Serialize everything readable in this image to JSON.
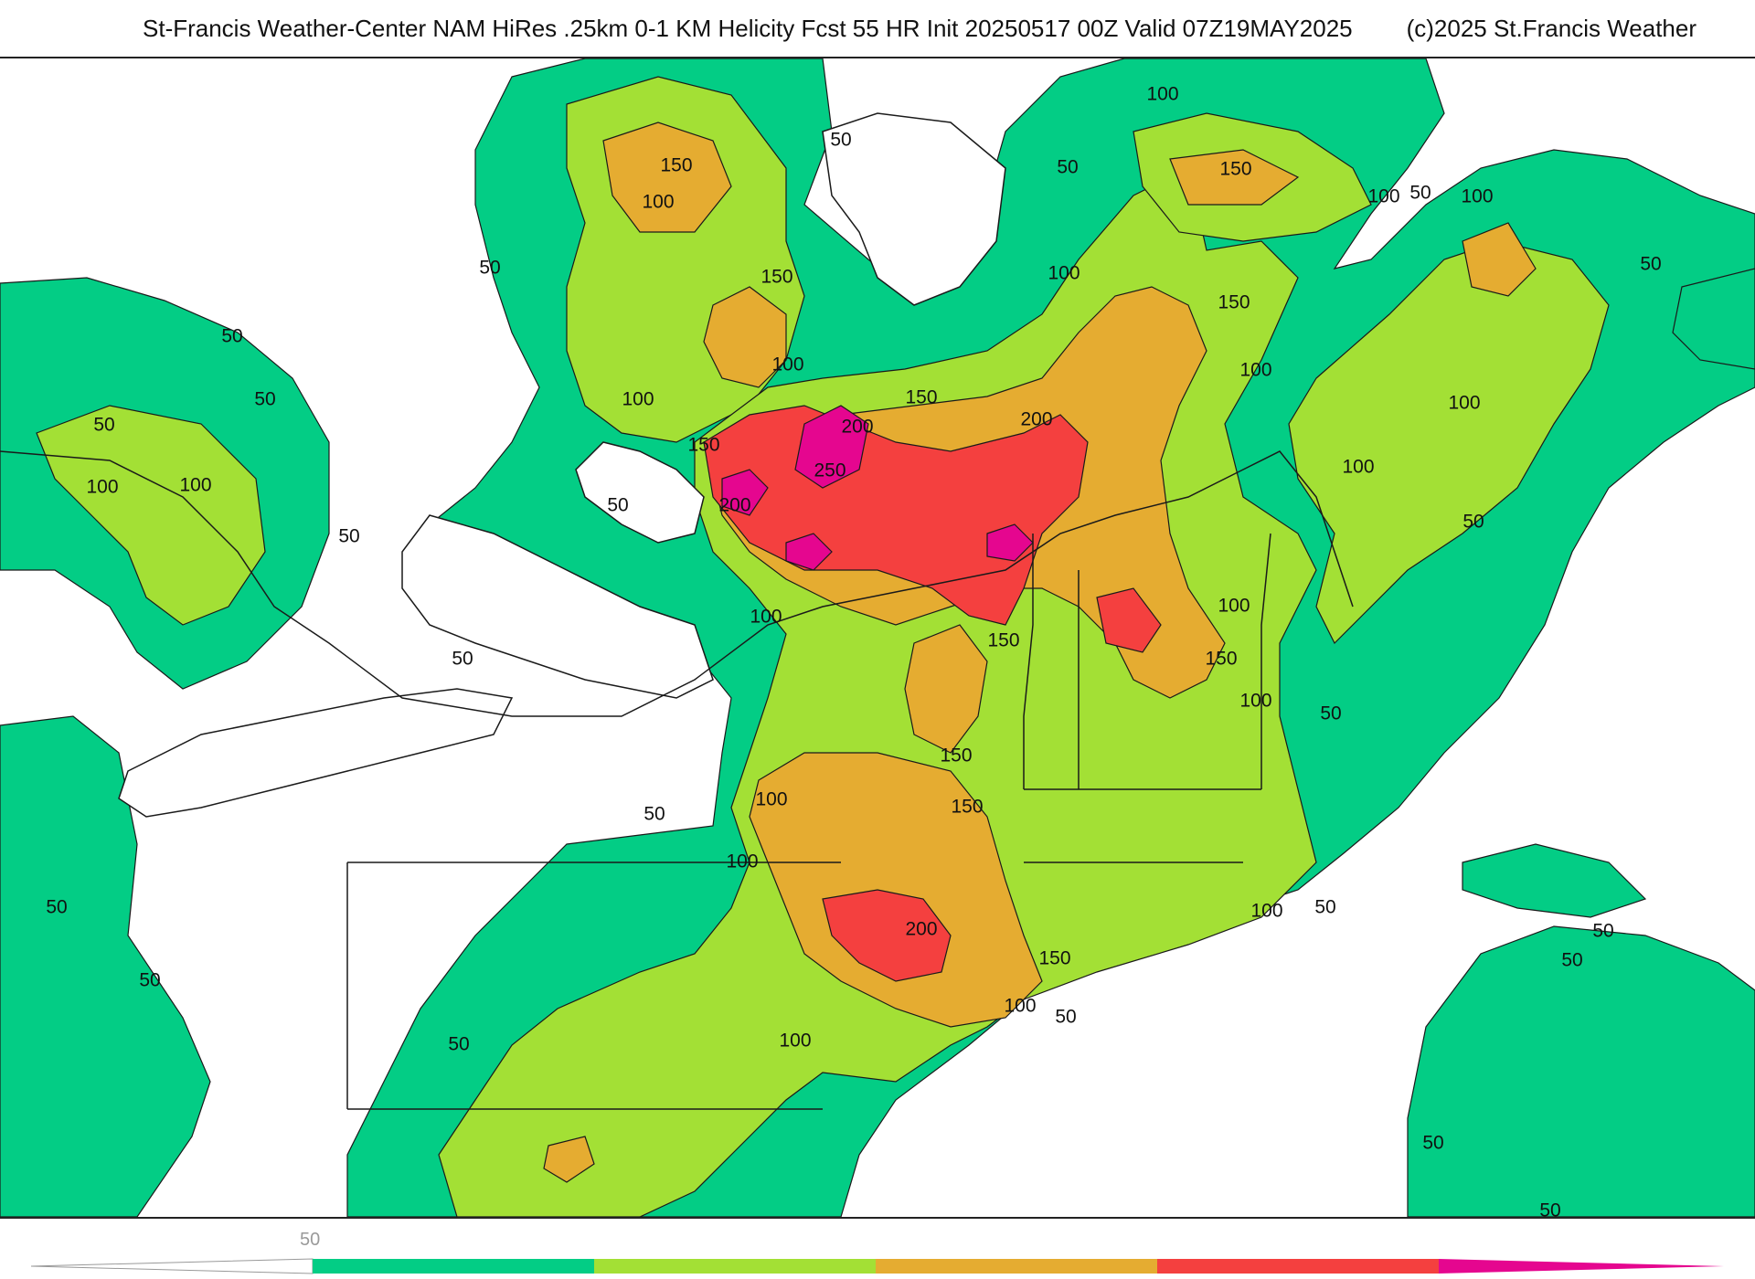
{
  "header": {
    "title": "St-Francis Weather-Center NAM HiRes .25km 0-1 KM Helicity Fcst 55 HR Init 20250517 00Z  Valid 07Z19MAY2025",
    "copyright": "(c)2025 St.Francis Weather"
  },
  "colors": {
    "c50": "#03cd85",
    "c100": "#a3e035",
    "c150": "#e5ac31",
    "c200": "#f4403f",
    "c250": "#e5068f",
    "water": "#ffffff",
    "lines": "#1a1a1a"
  },
  "legend": {
    "tick_label": "50",
    "bins": [
      "50",
      "100",
      "150",
      "200",
      "250"
    ]
  },
  "contour_labels": [
    "150",
    "100",
    "50",
    "150",
    "50",
    "50",
    "50",
    "100",
    "150",
    "100",
    "50",
    "100",
    "50",
    "100",
    "150",
    "100",
    "200",
    "150",
    "250",
    "200",
    "200",
    "150",
    "100",
    "50",
    "50",
    "100",
    "100",
    "50",
    "100",
    "100",
    "50",
    "100",
    "150",
    "150",
    "100",
    "50",
    "150",
    "150",
    "50",
    "100",
    "100",
    "50",
    "200",
    "150",
    "100",
    "50",
    "100",
    "50",
    "100",
    "50",
    "100",
    "100",
    "50",
    "50",
    "50",
    "50",
    "50",
    "50",
    "50"
  ]
}
